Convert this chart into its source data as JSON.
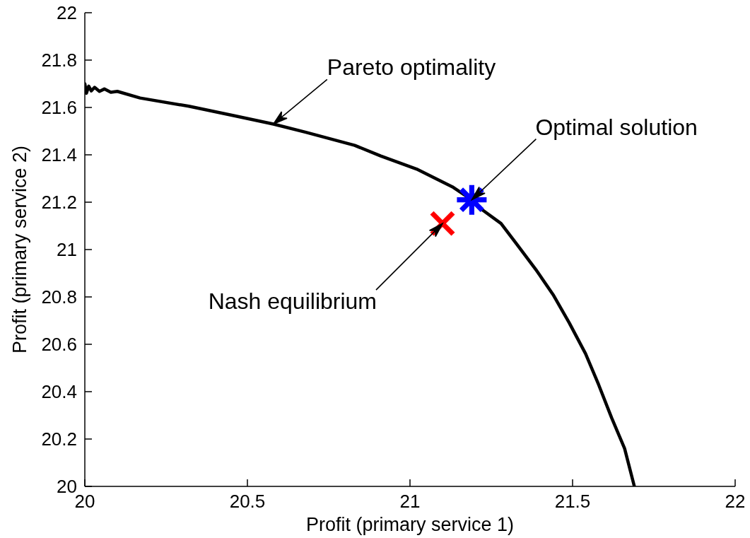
{
  "chart_data": {
    "type": "line",
    "xlabel": "Profit (primary service 1)",
    "ylabel": "Profit (primary service 2)",
    "xlim": [
      20,
      22
    ],
    "ylim": [
      20,
      22
    ],
    "xticks": [
      20,
      20.5,
      21,
      21.5,
      22
    ],
    "yticks": [
      20,
      20.2,
      20.4,
      20.6,
      20.8,
      21,
      21.2,
      21.4,
      21.6,
      21.8,
      22
    ],
    "series": [
      {
        "color": "#000000",
        "marker": "none",
        "x": [
          20.0,
          20.005,
          20.012,
          20.02,
          20.03,
          20.045,
          20.06,
          20.08,
          20.1,
          20.17,
          20.32,
          20.46,
          20.58,
          20.68,
          20.83,
          20.91,
          21.02,
          21.13,
          21.19,
          21.22,
          21.28,
          21.33,
          21.39,
          21.44,
          21.49,
          21.54,
          21.58,
          21.62,
          21.66,
          21.69
        ],
        "values": [
          21.7,
          21.66,
          21.69,
          21.67,
          21.685,
          21.668,
          21.678,
          21.664,
          21.668,
          21.64,
          21.605,
          21.565,
          21.53,
          21.495,
          21.44,
          21.395,
          21.34,
          21.265,
          21.21,
          21.17,
          21.11,
          21.02,
          20.91,
          20.81,
          20.69,
          20.56,
          20.43,
          20.29,
          20.16,
          20.0
        ]
      },
      {
        "type": "scatter",
        "color": "#0000ff",
        "marker": "star",
        "x": [
          21.19
        ],
        "values": [
          21.21
        ]
      },
      {
        "type": "scatter",
        "color": "#ff0000",
        "marker": "cross",
        "x": [
          21.1
        ],
        "values": [
          21.11
        ]
      }
    ],
    "annotations": [
      {
        "text": "Pareto optimality",
        "x": 20.58,
        "y": 21.53
      },
      {
        "text": "Optimal solution",
        "x": 21.19,
        "y": 21.21
      },
      {
        "text": "Nash equilibrium",
        "x": 21.1,
        "y": 21.11
      }
    ]
  }
}
